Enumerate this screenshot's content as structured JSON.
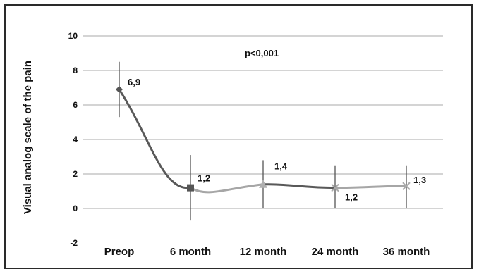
{
  "chart_data": {
    "type": "line",
    "title": "",
    "xlabel": "",
    "ylabel": "Visual analog scale of the pain",
    "ylim": [
      -2,
      10
    ],
    "yticks": [
      "-2",
      "0",
      "2",
      "4",
      "6",
      "8",
      "10"
    ],
    "grid": true,
    "categories": [
      "Preop",
      "6 month",
      "12 month",
      "24 month",
      "36 month"
    ],
    "series": [
      {
        "values": [
          6.9,
          1.2,
          1.4,
          1.2,
          1.3
        ],
        "error_low": [
          5.3,
          -0.7,
          0.0,
          0.0,
          0.0
        ],
        "error_high": [
          8.5,
          3.1,
          2.8,
          2.5,
          2.5
        ],
        "labels": [
          "6,9",
          "1,2",
          "1,4",
          "1,2",
          "1,3"
        ],
        "markers": [
          "diamond",
          "square",
          "triangle",
          "x",
          "x"
        ],
        "colors": {
          "line_dark": "#595959",
          "line_light": "#a6a6a6",
          "error_bar": "#555555",
          "grid": "#a9a9a9"
        }
      }
    ],
    "annotations": [
      "p<0,001"
    ]
  }
}
